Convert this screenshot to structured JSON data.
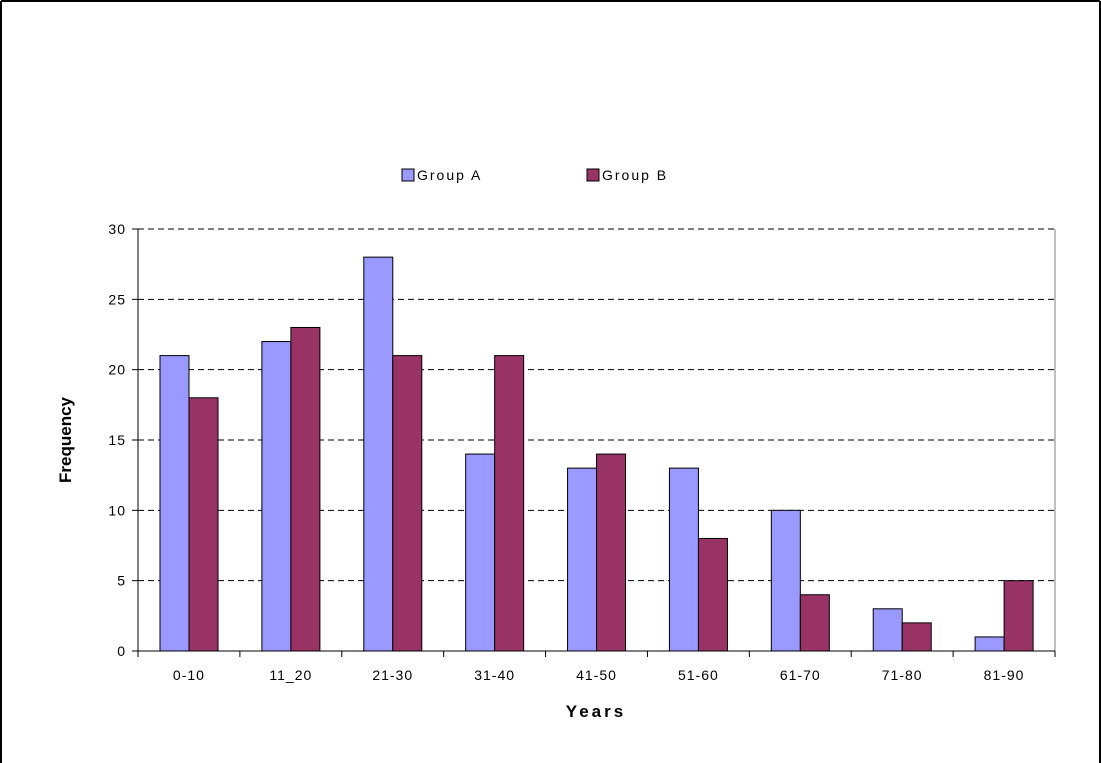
{
  "chart_data": {
    "type": "bar",
    "title": "",
    "xlabel": "Years",
    "ylabel": "Frequency",
    "categories": [
      "0-10",
      "11_20",
      "21-30",
      "31-40",
      "41-50",
      "51-60",
      "61-70",
      "71-80",
      "81-90"
    ],
    "series": [
      {
        "name": "Group A",
        "color": "#9999ff",
        "values": [
          21,
          22,
          28,
          14,
          13,
          13,
          10,
          3,
          1
        ]
      },
      {
        "name": "Group B",
        "color": "#993366",
        "values": [
          18,
          23,
          21,
          21,
          14,
          8,
          4,
          2,
          5
        ]
      }
    ],
    "ylim": [
      0,
      30
    ],
    "yticks": [
      0,
      5,
      10,
      15,
      20,
      25,
      30
    ],
    "grid": "dashed horizontal",
    "legend_position": "top"
  }
}
